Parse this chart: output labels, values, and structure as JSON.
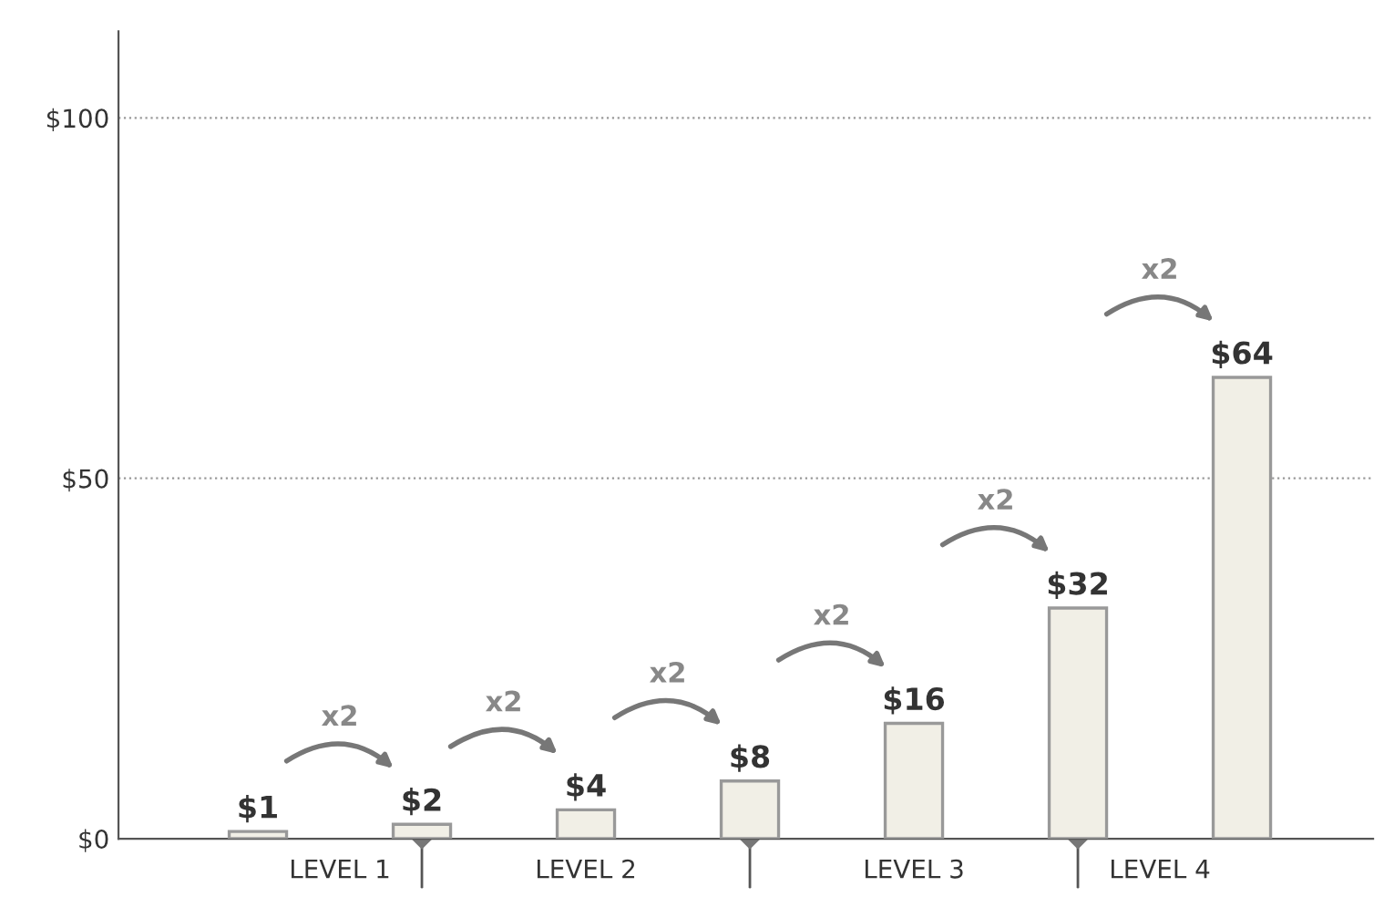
{
  "chart_data": {
    "type": "bar",
    "categories": [
      null,
      null,
      null,
      null,
      null,
      null,
      null
    ],
    "values": [
      1,
      2,
      4,
      8,
      16,
      32,
      64
    ],
    "value_labels": [
      "$1",
      "$2",
      "$4",
      "$8",
      "$16",
      "$32",
      "$64"
    ],
    "color": "#f1efe6",
    "ylim": [
      0,
      112
    ],
    "yticks": [
      {
        "value": 0,
        "label": "$0"
      },
      {
        "value": 50,
        "label": "$50"
      },
      {
        "value": 100,
        "label": "$100"
      }
    ],
    "grid": "y",
    "annotations": [
      "x2",
      "x2",
      "x2",
      "x2",
      "x2",
      "x2",
      "LEVEL 1",
      "LEVEL 2",
      "LEVEL 3",
      "LEVEL 4"
    ]
  }
}
